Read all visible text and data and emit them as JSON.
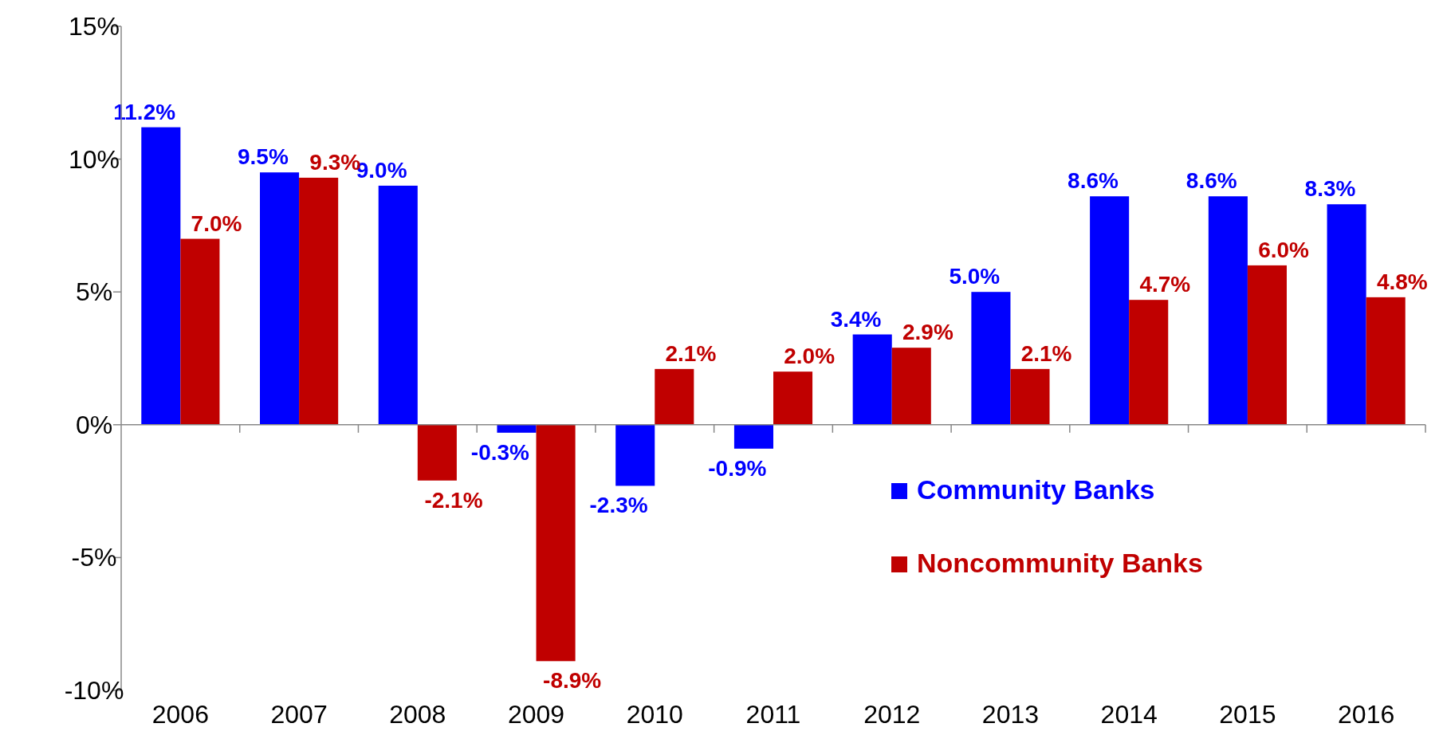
{
  "chart_data": {
    "type": "bar",
    "categories": [
      "2006",
      "2007",
      "2008",
      "2009",
      "2010",
      "2011",
      "2012",
      "2013",
      "2014",
      "2015",
      "2016"
    ],
    "series": [
      {
        "name": "Community Banks",
        "color": "#0000ff",
        "values": [
          11.2,
          9.5,
          9.0,
          -0.3,
          -2.3,
          -0.9,
          3.4,
          5.0,
          8.6,
          8.6,
          8.3
        ]
      },
      {
        "name": "Noncommunity Banks",
        "color": "#c00000",
        "values": [
          7.0,
          9.3,
          -2.1,
          -8.9,
          2.1,
          2.0,
          2.9,
          2.1,
          4.7,
          6.0,
          4.8
        ]
      }
    ],
    "ylim": [
      -10,
      15
    ],
    "yticks": [
      {
        "value": -10,
        "label": "-10%"
      },
      {
        "value": -5,
        "label": "-5%"
      },
      {
        "value": 0,
        "label": "0%"
      },
      {
        "value": 5,
        "label": "5%"
      },
      {
        "value": 10,
        "label": "10%"
      },
      {
        "value": 15,
        "label": "15%"
      }
    ],
    "value_labels": [
      [
        "11.2%",
        "9.5%",
        "9.0%",
        "-0.3%",
        "-2.3%",
        "-0.9%",
        "3.4%",
        "5.0%",
        "8.6%",
        "8.6%",
        "8.3%"
      ],
      [
        "7.0%",
        "9.3%",
        "-2.1%",
        "-8.9%",
        "2.1%",
        "2.0%",
        "2.9%",
        "2.1%",
        "4.7%",
        "6.0%",
        "4.8%"
      ]
    ],
    "legend": "bottom right"
  }
}
